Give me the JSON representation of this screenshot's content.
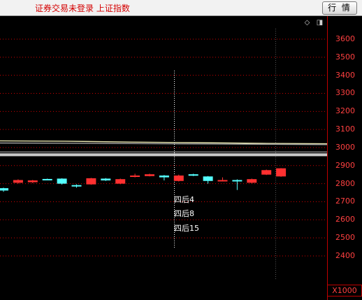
{
  "header": {
    "title": "证券交易未登录 上证指数",
    "market_button_label": "行 情"
  },
  "controls": {
    "diamond_icon": "◇",
    "toggle_icon": "◨"
  },
  "scale_label": "X1000",
  "annotations": [
    "四后4",
    "四后8",
    "四后15"
  ],
  "colors": {
    "up": "#ff3030",
    "down": "#54ffff",
    "axis": "#c00000",
    "grid": "#d00000"
  },
  "chart_data": {
    "type": "candlestick",
    "title": "",
    "ylim": [
      2300,
      3700
    ],
    "yticks": [
      2400,
      2500,
      2600,
      2700,
      2800,
      2900,
      3000,
      3100,
      3200,
      3300,
      3400,
      3500,
      3600
    ],
    "grid": true,
    "candles": [
      {
        "open": 2775,
        "close": 2762,
        "high": 2778,
        "low": 2755
      },
      {
        "open": 2805,
        "close": 2820,
        "high": 2824,
        "low": 2800
      },
      {
        "open": 2808,
        "close": 2818,
        "high": 2821,
        "low": 2803
      },
      {
        "open": 2826,
        "close": 2824,
        "high": 2828,
        "low": 2822
      },
      {
        "open": 2828,
        "close": 2800,
        "high": 2830,
        "low": 2795
      },
      {
        "open": 2792,
        "close": 2785,
        "high": 2796,
        "low": 2778
      },
      {
        "open": 2796,
        "close": 2830,
        "high": 2832,
        "low": 2794
      },
      {
        "open": 2828,
        "close": 2818,
        "high": 2831,
        "low": 2815
      },
      {
        "open": 2800,
        "close": 2825,
        "high": 2828,
        "low": 2797
      },
      {
        "open": 2838,
        "close": 2845,
        "high": 2855,
        "low": 2835
      },
      {
        "open": 2842,
        "close": 2852,
        "high": 2855,
        "low": 2840
      },
      {
        "open": 2845,
        "close": 2835,
        "high": 2848,
        "low": 2818
      },
      {
        "open": 2815,
        "close": 2845,
        "high": 2850,
        "low": 2812
      },
      {
        "open": 2852,
        "close": 2844,
        "high": 2855,
        "low": 2842
      },
      {
        "open": 2840,
        "close": 2815,
        "high": 2842,
        "low": 2800
      },
      {
        "open": 2815,
        "close": 2820,
        "high": 2835,
        "low": 2812
      },
      {
        "open": 2820,
        "close": 2815,
        "high": 2824,
        "low": 2765
      },
      {
        "open": 2805,
        "close": 2825,
        "high": 2828,
        "low": 2802
      },
      {
        "open": 2850,
        "close": 2875,
        "high": 2878,
        "low": 2848
      },
      {
        "open": 2840,
        "close": 2885,
        "high": 2886,
        "low": 2838
      }
    ],
    "lines": [
      {
        "values": [
          3037,
          3035,
          3030,
          3027,
          3023,
          3021
        ],
        "color": "#e8e6b0"
      },
      {
        "values": [
          3025,
          3024,
          3022,
          3020,
          3018,
          3016
        ],
        "color": "#a0a0a0"
      }
    ],
    "band": {
      "from": 2952,
      "to": 2968
    }
  }
}
